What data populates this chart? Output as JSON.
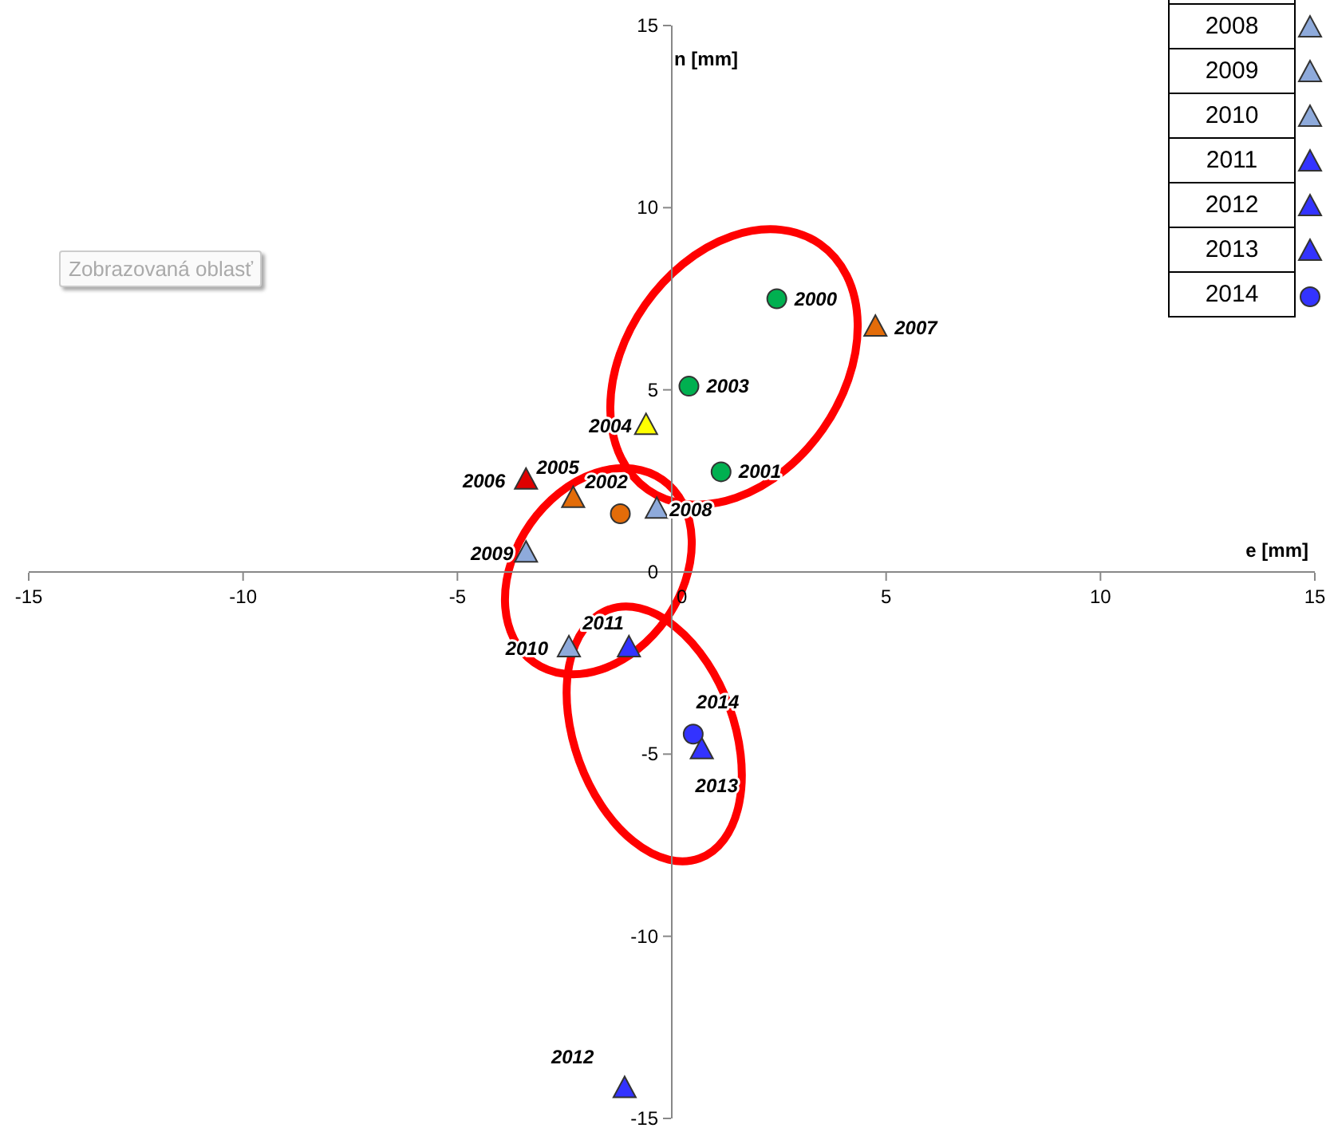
{
  "chart_data": {
    "type": "scatter",
    "xlabel": "e [mm]",
    "ylabel": "n [mm]",
    "xlim": [
      -15,
      15
    ],
    "ylim": [
      -15,
      15
    ],
    "xticks": [
      -15,
      -10,
      -5,
      0,
      5,
      10,
      15
    ],
    "yticks": [
      -15,
      -10,
      -5,
      0,
      5,
      10,
      15
    ],
    "annotations": [
      "Zobrazovaná oblasť"
    ],
    "legend": "top right",
    "series": [
      {
        "name": "2000",
        "color": "#00b050",
        "marker": "circle",
        "x": [
          2.45
        ],
        "values": [
          7.5
        ]
      },
      {
        "name": "2001",
        "color": "#00b050",
        "marker": "circle",
        "x": [
          1.15
        ],
        "values": [
          2.75
        ]
      },
      {
        "name": "2002",
        "color": "#e36c09",
        "marker": "circle",
        "x": [
          -1.2
        ],
        "values": [
          1.6
        ]
      },
      {
        "name": "2003",
        "color": "#00b050",
        "marker": "circle",
        "x": [
          0.4
        ],
        "values": [
          5.1
        ]
      },
      {
        "name": "2004",
        "color": "#ffff00",
        "marker": "triangle",
        "x": [
          -0.6
        ],
        "values": [
          4.0
        ]
      },
      {
        "name": "2005",
        "color": "#e36c09",
        "marker": "triangle",
        "x": [
          -2.3
        ],
        "values": [
          2.0
        ]
      },
      {
        "name": "2006",
        "color": "#e00000",
        "marker": "triangle",
        "x": [
          -3.4
        ],
        "values": [
          2.5
        ]
      },
      {
        "name": "2007",
        "color": "#e36c09",
        "marker": "triangle",
        "x": [
          4.75
        ],
        "values": [
          6.7
        ]
      },
      {
        "name": "2008",
        "color": "#8eaadb",
        "marker": "triangle",
        "x": [
          -0.35
        ],
        "values": [
          1.7
        ]
      },
      {
        "name": "2009",
        "color": "#8eaadb",
        "marker": "triangle",
        "x": [
          -3.4
        ],
        "values": [
          0.5
        ]
      },
      {
        "name": "2010",
        "color": "#8eaadb",
        "marker": "triangle",
        "x": [
          -2.4
        ],
        "values": [
          -2.1
        ]
      },
      {
        "name": "2011",
        "color": "#3333ff",
        "marker": "triangle",
        "x": [
          -1.0
        ],
        "values": [
          -2.1
        ]
      },
      {
        "name": "2012",
        "color": "#3333ff",
        "marker": "triangle",
        "x": [
          -1.1
        ],
        "values": [
          -14.2
        ]
      },
      {
        "name": "2013",
        "color": "#3333ff",
        "marker": "triangle",
        "x": [
          0.7
        ],
        "values": [
          -4.9
        ]
      },
      {
        "name": "2014",
        "color": "#3333ff",
        "marker": "circle",
        "x": [
          0.5
        ],
        "values": [
          -4.45
        ]
      }
    ]
  }
}
